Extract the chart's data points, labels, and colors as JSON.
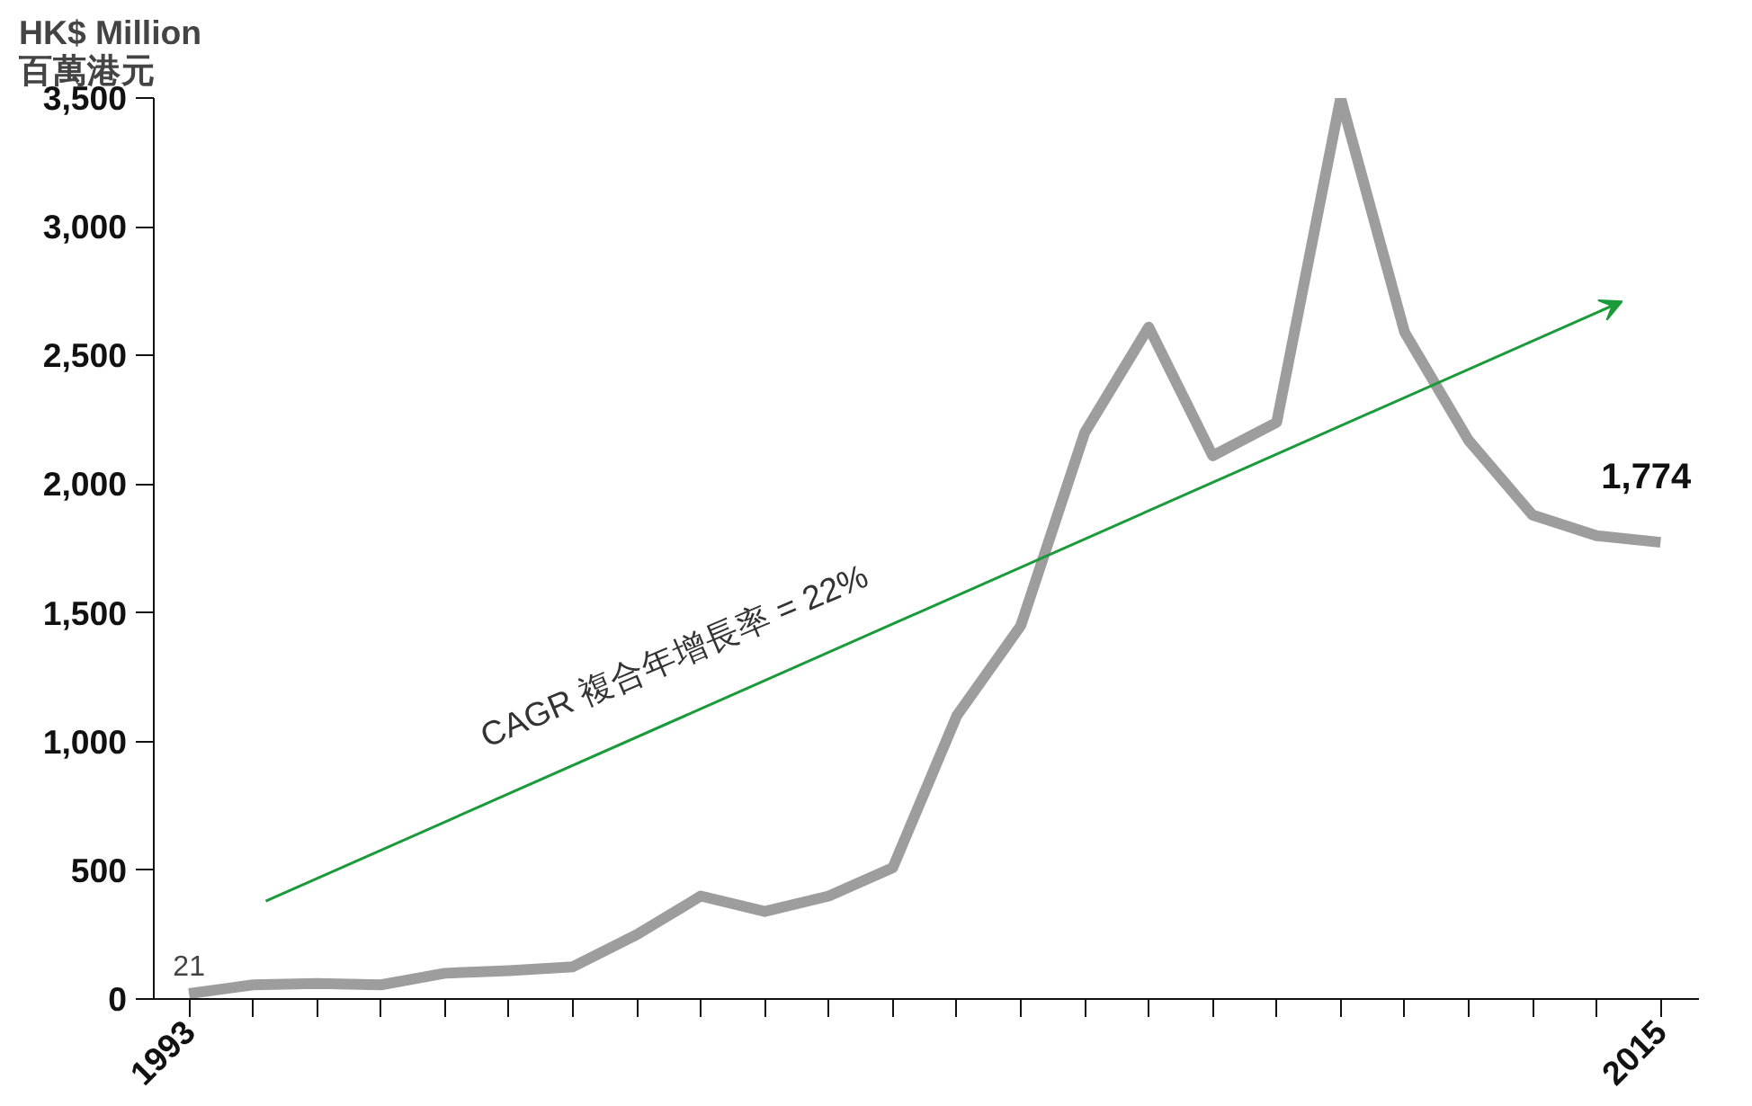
{
  "chart_data": {
    "type": "line",
    "ylabel": "HK$ Million\n百萬港元",
    "categories": [
      "1993",
      null,
      null,
      null,
      null,
      null,
      null,
      null,
      null,
      null,
      null,
      null,
      null,
      null,
      null,
      null,
      null,
      null,
      null,
      null,
      null,
      null,
      null,
      "2015"
    ],
    "series": [
      {
        "color": "#9d9d9d",
        "values": [
          21,
          55,
          60,
          55,
          100,
          110,
          125,
          250,
          400,
          340,
          400,
          510,
          1100,
          1450,
          2200,
          2610,
          2110,
          2240,
          3500,
          2590,
          2170,
          1880,
          1800,
          1774
        ],
        "value_labels": [
          "21",
          null,
          null,
          null,
          null,
          null,
          null,
          null,
          null,
          null,
          null,
          null,
          null,
          null,
          null,
          null,
          null,
          null,
          null,
          null,
          null,
          null,
          null,
          "1,774"
        ]
      }
    ],
    "ylim": [
      0,
      3500
    ],
    "yticks": [
      0,
      {
        "value": 500,
        "label": "500"
      },
      {
        "value": 1000,
        "label": "1,000"
      },
      {
        "value": 1500,
        "label": "1,500"
      },
      {
        "value": 2000,
        "label": "2,000"
      },
      {
        "value": 2500,
        "label": "2,500"
      },
      {
        "value": 3000,
        "label": "3,000"
      },
      {
        "value": 3500,
        "label": "3,500"
      }
    ],
    "annotations": [
      "CAGR 複合年增長率 = 22%"
    ],
    "grid": false,
    "marker": "none",
    "line_style": "solid"
  }
}
